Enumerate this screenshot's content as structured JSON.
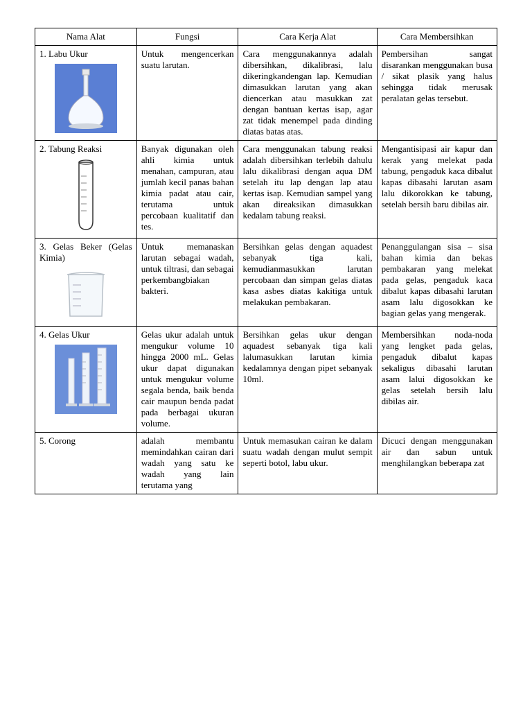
{
  "table": {
    "headers": [
      "Nama  Alat",
      "Fungsi",
      "Cara Kerja Alat",
      "Cara Membersihkan"
    ],
    "rows": [
      {
        "name": "1.  Labu Ukur",
        "fungsi": "Untuk mengencerkan suatu larutan.",
        "cara": "Cara menggunakannya adalah dibersihkan, dikalibrasi, lalu dikeringkandengan lap. Kemudian dimasukkan larutan yang akan diencerkan atau masukkan zat dengan bantuan kertas isap, agar zat tidak menempel pada dinding diatas batas atas.",
        "bersih": "Pembersihan sangat disarankan menggunakan busa / sikat plasik yang halus sehingga tidak merusak peralatan gelas tersebut.",
        "icon": "flask",
        "icon_bg": "#5a7fd4"
      },
      {
        "name": "2. Tabung Reaksi",
        "fungsi": "Banyak digunakan oleh ahli kimia untuk menahan, campuran, atau jumlah kecil panas bahan kimia padat atau cair, terutama untuk percobaan kualitatif dan tes.",
        "cara": "Cara menggunakan tabung reaksi adalah dibersihkan terlebih dahulu lalu dikalibrasi dengan aqua DM setelah itu lap dengan lap atau kertas isap. Kemudian sampel yang akan direaksikan dimasukkan kedalam tabung reaksi.",
        "bersih": "Mengantisipasi air kapur dan kerak yang melekat pada tabung, pengaduk kaca dibalut kapas dibasahi larutan asam lalu dikorokkan ke tabung, setelah bersih baru dibilas air.",
        "icon": "testtube",
        "icon_bg": "#ffffff"
      },
      {
        "name": "3.  Gelas Beker (Gelas Kimia)",
        "fungsi": "Untuk memanaskan larutan sebagai wadah, untuk tiltrasi, dan sebagai perkembangbiakan bakteri.",
        "cara": "Bersihkan gelas dengan aquadest sebanyak tiga kali, kemudianmasukkan larutan percobaan dan simpan gelas diatas kasa asbes diatas kakitiga untuk melakukan pembakaran.",
        "bersih": "Penanggulangan sisa – sisa bahan kimia dan bekas pembakaran yang melekat pada gelas, pengaduk kaca dibalut kapas dibasahi larutan asam lalu digosokkan ke bagian gelas yang mengerak.",
        "icon": "beaker",
        "icon_bg": "#ffffff"
      },
      {
        "name": "4. Gelas Ukur",
        "fungsi": "Gelas ukur adalah untuk mengukur volume 10 hingga 2000 mL. Gelas ukur dapat digunakan untuk mengukur volume segala benda, baik benda cair maupun benda padat pada berbagai ukuran volume.",
        "cara": "Bersihkan gelas ukur dengan aquadest sebanyak tiga kali lalumasukkan larutan kimia kedalamnya dengan pipet sebanyak 10ml.",
        "bersih": "Membersihkan noda-noda yang lengket pada gelas, pengaduk dibalut kapas sekaligus dibasahi larutan asam lalui digosokkan ke gelas setelah bersih lalu dibilas air.",
        "icon": "graduated",
        "icon_bg": "#6b8fd9"
      },
      {
        "name": "5. Corong",
        "fungsi": "adalah membantu memindahkan cairan dari wadah yang satu ke wadah yang lain terutama yang",
        "cara": "Untuk memasukan cairan ke dalam suatu wadah dengan mulut sempit seperti  botol, labu ukur.",
        "bersih": "Dicuci dengan menggunakan air dan sabun untuk menghilangkan beberapa zat",
        "icon": "none",
        "icon_bg": "#ffffff"
      }
    ]
  },
  "colors": {
    "border": "#000000",
    "text": "#000000",
    "bg": "#ffffff"
  },
  "fonts": {
    "family": "Times New Roman",
    "size_pt": 13
  }
}
